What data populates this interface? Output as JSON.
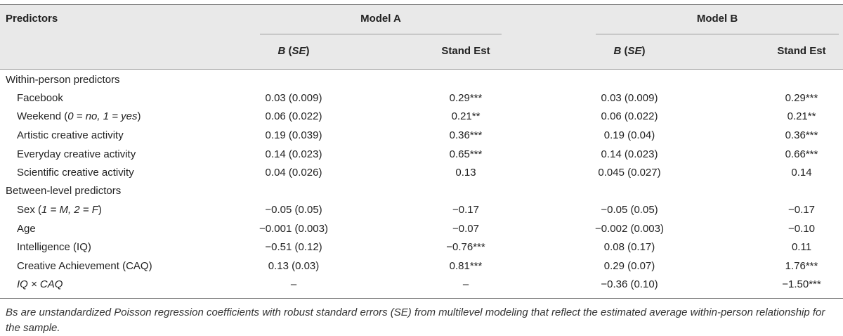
{
  "header": {
    "predictors_label": "Predictors",
    "model_a_label": "Model A",
    "model_b_label": "Model B",
    "b_se_prefix": "B",
    "b_se_paren_open": " (",
    "b_se_se": "SE",
    "b_se_paren_close": ")",
    "stand_est_label": "Stand Est"
  },
  "sections": [
    {
      "title": "Within-person predictors",
      "rows": [
        {
          "label": "Facebook",
          "a_b": "0.03 (0.009)",
          "a_est": "0.29***",
          "b_b": "0.03 (0.009)",
          "b_est": "0.29***"
        },
        {
          "label": "Weekend (0 = no, 1 = yes)",
          "label_main": "Weekend (",
          "label_italic": "0 = no, 1 = yes",
          "label_end": ")",
          "a_b": "0.06 (0.022)",
          "a_est": "0.21**",
          "b_b": "0.06 (0.022)",
          "b_est": "0.21**"
        },
        {
          "label": "Artistic creative activity",
          "a_b": "0.19 (0.039)",
          "a_est": "0.36***",
          "b_b": "0.19 (0.04)",
          "b_est": "0.36***"
        },
        {
          "label": "Everyday creative activity",
          "a_b": "0.14 (0.023)",
          "a_est": "0.65***",
          "b_b": "0.14 (0.023)",
          "b_est": "0.66***"
        },
        {
          "label": "Scientific creative activity",
          "a_b": "0.04 (0.026)",
          "a_est": "0.13",
          "b_b": "0.045 (0.027)",
          "b_est": "0.14"
        }
      ]
    },
    {
      "title": "Between-level predictors",
      "rows": [
        {
          "label": "Sex (1 = M, 2 = F)",
          "label_main": "Sex (",
          "label_italic": "1 = M, 2 = F",
          "label_end": ")",
          "a_b": "−0.05 (0.05)",
          "a_est": "−0.17",
          "b_b": "−0.05 (0.05)",
          "b_est": "−0.17"
        },
        {
          "label": "Age",
          "a_b": "−0.001 (0.003)",
          "a_est": "−0.07",
          "b_b": "−0.002 (0.003)",
          "b_est": "−0.10"
        },
        {
          "label": "Intelligence (IQ)",
          "a_b": "−0.51 (0.12)",
          "a_est": "−0.76***",
          "b_b": "0.08 (0.17)",
          "b_est": "0.11"
        },
        {
          "label": "Creative Achievement (CAQ)",
          "a_b": "0.13 (0.03)",
          "a_est": "0.81***",
          "b_b": "0.29 (0.07)",
          "b_est": "1.76***"
        },
        {
          "label": "IQ × CAQ",
          "italic": true,
          "a_b": "–",
          "a_est": "–",
          "b_b": "−0.36 (0.10)",
          "b_est": "−1.50***"
        }
      ]
    }
  ],
  "footnote": "Bs are unstandardized Poisson regression coefficients with robust standard errors (SE) from multilevel modeling that reflect the estimated average within-person relationship for the sample."
}
